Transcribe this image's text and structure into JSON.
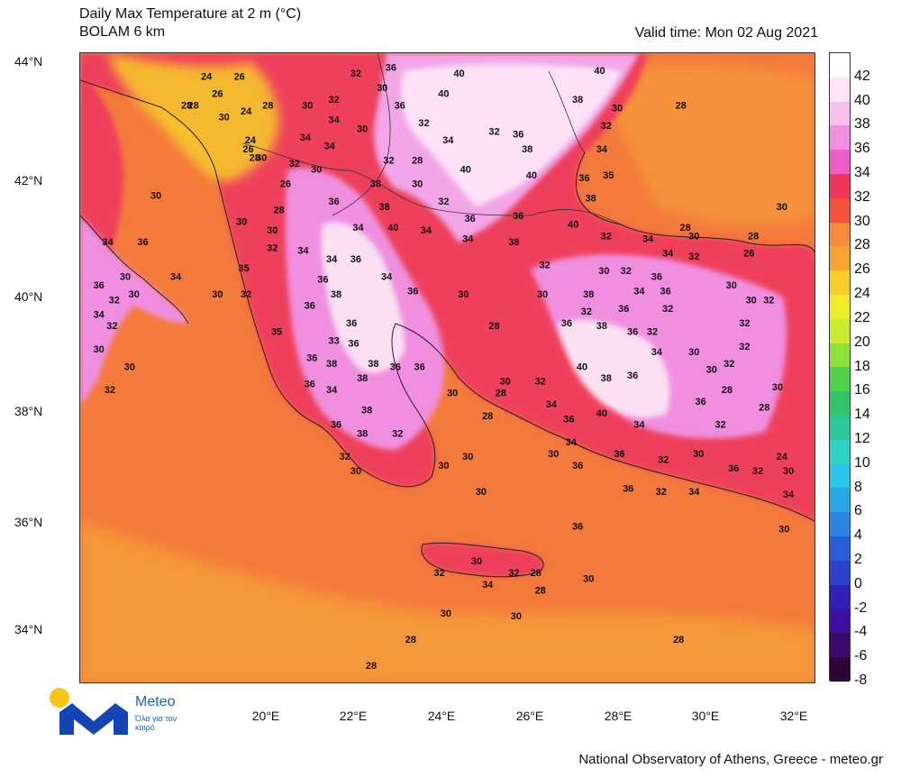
{
  "header": {
    "title": "Daily Max Temperature at 2 m (°C)",
    "model": "BOLAM 6 km",
    "valid_time": "Valid time: Mon 02 Aug 2021"
  },
  "axes": {
    "latitudes": [
      "44°N",
      "42°N",
      "40°N",
      "38°N",
      "36°N",
      "34°N"
    ],
    "longitudes": [
      "20°E",
      "22°E",
      "24°E",
      "26°E",
      "28°E",
      "30°E",
      "32°E"
    ]
  },
  "colorbar": {
    "labels": [
      "42",
      "40",
      "38",
      "36",
      "34",
      "32",
      "30",
      "28",
      "26",
      "24",
      "22",
      "20",
      "18",
      "16",
      "14",
      "12",
      "10",
      "8",
      "6",
      "4",
      "2",
      "0",
      "-2",
      "-4",
      "-6",
      "-8"
    ],
    "colors": [
      "#ffffff",
      "#fbe6f5",
      "#f8c0ea",
      "#f08fe0",
      "#ee5ec9",
      "#f0365a",
      "#f4523a",
      "#f58a3a",
      "#f6a431",
      "#f7cd2a",
      "#f1ec2b",
      "#c9ec30",
      "#8ee13a",
      "#52d14a",
      "#33c36a",
      "#2ec59a",
      "#2dd2c7",
      "#29c6e7",
      "#28a8e6",
      "#2a84e0",
      "#2a5ed6",
      "#2c41c9",
      "#3022b6",
      "#3b11a2",
      "#3a0d6d",
      "#2a0637"
    ]
  },
  "map_values": [
    {
      "v": "24",
      "lon": 18.65,
      "lat": 43.7
    },
    {
      "v": "26",
      "lon": 19.4,
      "lat": 43.7
    },
    {
      "v": "26",
      "lon": 18.9,
      "lat": 43.4
    },
    {
      "v": "28",
      "lon": 18.35,
      "lat": 43.2
    },
    {
      "v": "28",
      "lon": 18.2,
      "lat": 43.2
    },
    {
      "v": "30",
      "lon": 19.05,
      "lat": 43.0
    },
    {
      "v": "24",
      "lon": 19.55,
      "lat": 43.1
    },
    {
      "v": "28",
      "lon": 20.05,
      "lat": 43.2
    },
    {
      "v": "24",
      "lon": 19.65,
      "lat": 42.6
    },
    {
      "v": "32",
      "lon": 22.05,
      "lat": 43.75
    },
    {
      "v": "36",
      "lon": 22.85,
      "lat": 43.85
    },
    {
      "v": "40",
      "lon": 24.4,
      "lat": 43.75
    },
    {
      "v": "40",
      "lon": 27.6,
      "lat": 43.8
    },
    {
      "v": "40",
      "lon": 24.05,
      "lat": 43.4
    },
    {
      "v": "38",
      "lon": 27.1,
      "lat": 43.3
    },
    {
      "v": "30",
      "lon": 22.65,
      "lat": 43.5
    },
    {
      "v": "32",
      "lon": 21.55,
      "lat": 43.3
    },
    {
      "v": "30",
      "lon": 20.95,
      "lat": 43.2
    },
    {
      "v": "36",
      "lon": 23.05,
      "lat": 43.2
    },
    {
      "v": "30",
      "lon": 28.0,
      "lat": 43.15
    },
    {
      "v": "28",
      "lon": 29.45,
      "lat": 43.2
    },
    {
      "v": "34",
      "lon": 21.55,
      "lat": 42.95
    },
    {
      "v": "30",
      "lon": 22.2,
      "lat": 42.8
    },
    {
      "v": "32",
      "lon": 23.6,
      "lat": 42.9
    },
    {
      "v": "34",
      "lon": 24.15,
      "lat": 42.6
    },
    {
      "v": "32",
      "lon": 25.2,
      "lat": 42.75
    },
    {
      "v": "36",
      "lon": 25.75,
      "lat": 42.7
    },
    {
      "v": "32",
      "lon": 27.75,
      "lat": 42.85
    },
    {
      "v": "34",
      "lon": 20.9,
      "lat": 42.65
    },
    {
      "v": "34",
      "lon": 21.45,
      "lat": 42.5
    },
    {
      "v": "38",
      "lon": 25.95,
      "lat": 42.45
    },
    {
      "v": "34",
      "lon": 27.65,
      "lat": 42.45
    },
    {
      "v": "30",
      "lon": 19.9,
      "lat": 42.3
    },
    {
      "v": "28",
      "lon": 19.75,
      "lat": 42.3
    },
    {
      "v": "26",
      "lon": 19.6,
      "lat": 42.45
    },
    {
      "v": "32",
      "lon": 20.65,
      "lat": 42.2
    },
    {
      "v": "30",
      "lon": 21.15,
      "lat": 42.1
    },
    {
      "v": "32",
      "lon": 22.8,
      "lat": 42.25
    },
    {
      "v": "28",
      "lon": 23.45,
      "lat": 42.25
    },
    {
      "v": "40",
      "lon": 24.55,
      "lat": 42.1
    },
    {
      "v": "40",
      "lon": 26.05,
      "lat": 42.0
    },
    {
      "v": "36",
      "lon": 27.25,
      "lat": 41.95
    },
    {
      "v": "35",
      "lon": 27.8,
      "lat": 42.0
    },
    {
      "v": "26",
      "lon": 20.45,
      "lat": 41.85
    },
    {
      "v": "30",
      "lon": 23.45,
      "lat": 41.85
    },
    {
      "v": "38",
      "lon": 22.5,
      "lat": 41.85
    },
    {
      "v": "38",
      "lon": 27.4,
      "lat": 41.6
    },
    {
      "v": "30",
      "lon": 17.5,
      "lat": 41.65
    },
    {
      "v": "36",
      "lon": 21.55,
      "lat": 41.55
    },
    {
      "v": "38",
      "lon": 22.7,
      "lat": 41.45
    },
    {
      "v": "32",
      "lon": 24.05,
      "lat": 41.55
    },
    {
      "v": "28",
      "lon": 20.3,
      "lat": 41.4
    },
    {
      "v": "30",
      "lon": 19.45,
      "lat": 41.2
    },
    {
      "v": "36",
      "lon": 24.65,
      "lat": 41.25
    },
    {
      "v": "36",
      "lon": 25.75,
      "lat": 41.3
    },
    {
      "v": "40",
      "lon": 27.0,
      "lat": 41.15
    },
    {
      "v": "28",
      "lon": 29.55,
      "lat": 41.1
    },
    {
      "v": "30",
      "lon": 31.75,
      "lat": 41.45
    },
    {
      "v": "40",
      "lon": 22.9,
      "lat": 41.1
    },
    {
      "v": "34",
      "lon": 23.65,
      "lat": 41.05
    },
    {
      "v": "34",
      "lon": 22.1,
      "lat": 41.1
    },
    {
      "v": "30",
      "lon": 20.15,
      "lat": 41.05
    },
    {
      "v": "34",
      "lon": 24.6,
      "lat": 40.9
    },
    {
      "v": "38",
      "lon": 25.65,
      "lat": 40.85
    },
    {
      "v": "32",
      "lon": 27.75,
      "lat": 40.95
    },
    {
      "v": "34",
      "lon": 28.7,
      "lat": 40.9
    },
    {
      "v": "30",
      "lon": 29.75,
      "lat": 40.95
    },
    {
      "v": "28",
      "lon": 31.1,
      "lat": 40.95
    },
    {
      "v": "34",
      "lon": 16.4,
      "lat": 40.85
    },
    {
      "v": "36",
      "lon": 17.2,
      "lat": 40.85
    },
    {
      "v": "32",
      "lon": 20.15,
      "lat": 40.75
    },
    {
      "v": "34",
      "lon": 20.85,
      "lat": 40.7
    },
    {
      "v": "34",
      "lon": 21.5,
      "lat": 40.55
    },
    {
      "v": "36",
      "lon": 22.05,
      "lat": 40.55
    },
    {
      "v": "36",
      "lon": 21.3,
      "lat": 40.2
    },
    {
      "v": "32",
      "lon": 26.35,
      "lat": 40.45
    },
    {
      "v": "34",
      "lon": 29.15,
      "lat": 40.65
    },
    {
      "v": "32",
      "lon": 29.75,
      "lat": 40.6
    },
    {
      "v": "26",
      "lon": 31.0,
      "lat": 40.65
    },
    {
      "v": "35",
      "lon": 19.5,
      "lat": 40.4
    },
    {
      "v": "34",
      "lon": 22.75,
      "lat": 40.25
    },
    {
      "v": "30",
      "lon": 27.7,
      "lat": 40.35
    },
    {
      "v": "32",
      "lon": 28.2,
      "lat": 40.35
    },
    {
      "v": "36",
      "lon": 28.9,
      "lat": 40.25
    },
    {
      "v": "30",
      "lon": 16.8,
      "lat": 40.25
    },
    {
      "v": "34",
      "lon": 17.95,
      "lat": 40.25
    },
    {
      "v": "36",
      "lon": 16.2,
      "lat": 40.1
    },
    {
      "v": "38",
      "lon": 21.6,
      "lat": 39.95
    },
    {
      "v": "36",
      "lon": 23.35,
      "lat": 40.0
    },
    {
      "v": "30",
      "lon": 24.5,
      "lat": 39.95
    },
    {
      "v": "30",
      "lon": 26.3,
      "lat": 39.95
    },
    {
      "v": "38",
      "lon": 27.35,
      "lat": 39.95
    },
    {
      "v": "34",
      "lon": 28.5,
      "lat": 40.0
    },
    {
      "v": "36",
      "lon": 29.1,
      "lat": 40.0
    },
    {
      "v": "30",
      "lon": 30.6,
      "lat": 40.1
    },
    {
      "v": "30",
      "lon": 17.0,
      "lat": 39.95
    },
    {
      "v": "32",
      "lon": 16.55,
      "lat": 39.85
    },
    {
      "v": "30",
      "lon": 18.9,
      "lat": 39.95
    },
    {
      "v": "32",
      "lon": 19.55,
      "lat": 39.95
    },
    {
      "v": "36",
      "lon": 21.0,
      "lat": 39.75
    },
    {
      "v": "32",
      "lon": 27.3,
      "lat": 39.65
    },
    {
      "v": "36",
      "lon": 28.15,
      "lat": 39.7
    },
    {
      "v": "32",
      "lon": 29.15,
      "lat": 39.7
    },
    {
      "v": "30",
      "lon": 31.05,
      "lat": 39.85
    },
    {
      "v": "32",
      "lon": 31.45,
      "lat": 39.85
    },
    {
      "v": "34",
      "lon": 16.2,
      "lat": 39.6
    },
    {
      "v": "32",
      "lon": 16.5,
      "lat": 39.4
    },
    {
      "v": "36",
      "lon": 21.95,
      "lat": 39.45
    },
    {
      "v": "28",
      "lon": 25.2,
      "lat": 39.4
    },
    {
      "v": "36",
      "lon": 26.85,
      "lat": 39.45
    },
    {
      "v": "38",
      "lon": 27.65,
      "lat": 39.4
    },
    {
      "v": "36",
      "lon": 28.35,
      "lat": 39.3
    },
    {
      "v": "32",
      "lon": 28.8,
      "lat": 39.3
    },
    {
      "v": "32",
      "lon": 30.9,
      "lat": 39.45
    },
    {
      "v": "35",
      "lon": 20.25,
      "lat": 39.3
    },
    {
      "v": "33",
      "lon": 21.55,
      "lat": 39.15
    },
    {
      "v": "36",
      "lon": 22.0,
      "lat": 39.1
    },
    {
      "v": "30",
      "lon": 16.2,
      "lat": 39.0
    },
    {
      "v": "34",
      "lon": 28.9,
      "lat": 38.95
    },
    {
      "v": "30",
      "lon": 29.75,
      "lat": 38.95
    },
    {
      "v": "32",
      "lon": 30.9,
      "lat": 39.05
    },
    {
      "v": "36",
      "lon": 21.05,
      "lat": 38.85
    },
    {
      "v": "38",
      "lon": 22.45,
      "lat": 38.75
    },
    {
      "v": "30",
      "lon": 16.9,
      "lat": 38.7
    },
    {
      "v": "36",
      "lon": 22.95,
      "lat": 38.7
    },
    {
      "v": "36",
      "lon": 23.5,
      "lat": 38.7
    },
    {
      "v": "40",
      "lon": 27.2,
      "lat": 38.7
    },
    {
      "v": "38",
      "lon": 27.75,
      "lat": 38.5
    },
    {
      "v": "36",
      "lon": 28.35,
      "lat": 38.55
    },
    {
      "v": "30",
      "lon": 30.15,
      "lat": 38.65
    },
    {
      "v": "32",
      "lon": 30.55,
      "lat": 38.75
    },
    {
      "v": "38",
      "lon": 21.5,
      "lat": 38.75
    },
    {
      "v": "38",
      "lon": 22.2,
      "lat": 38.5
    },
    {
      "v": "36",
      "lon": 21.0,
      "lat": 38.4
    },
    {
      "v": "34",
      "lon": 21.5,
      "lat": 38.3
    },
    {
      "v": "32",
      "lon": 16.45,
      "lat": 38.3
    },
    {
      "v": "30",
      "lon": 25.45,
      "lat": 38.45
    },
    {
      "v": "32",
      "lon": 26.25,
      "lat": 38.45
    },
    {
      "v": "28",
      "lon": 25.35,
      "lat": 38.25
    },
    {
      "v": "30",
      "lon": 24.25,
      "lat": 38.25
    },
    {
      "v": "28",
      "lon": 30.5,
      "lat": 38.3
    },
    {
      "v": "30",
      "lon": 31.65,
      "lat": 38.35
    },
    {
      "v": "36",
      "lon": 29.9,
      "lat": 38.1
    },
    {
      "v": "28",
      "lon": 31.35,
      "lat": 38.0
    },
    {
      "v": "38",
      "lon": 22.3,
      "lat": 37.95
    },
    {
      "v": "40",
      "lon": 27.65,
      "lat": 37.9
    },
    {
      "v": "36",
      "lon": 26.9,
      "lat": 37.8
    },
    {
      "v": "34",
      "lon": 26.5,
      "lat": 38.05
    },
    {
      "v": "28",
      "lon": 25.05,
      "lat": 37.85
    },
    {
      "v": "36",
      "lon": 21.6,
      "lat": 37.7
    },
    {
      "v": "38",
      "lon": 22.2,
      "lat": 37.55
    },
    {
      "v": "32",
      "lon": 23.0,
      "lat": 37.55
    },
    {
      "v": "32",
      "lon": 30.35,
      "lat": 37.7
    },
    {
      "v": "34",
      "lon": 28.5,
      "lat": 37.7
    },
    {
      "v": "34",
      "lon": 26.95,
      "lat": 37.4
    },
    {
      "v": "30",
      "lon": 26.55,
      "lat": 37.2
    },
    {
      "v": "36",
      "lon": 27.1,
      "lat": 37.0
    },
    {
      "v": "32",
      "lon": 29.05,
      "lat": 37.1
    },
    {
      "v": "30",
      "lon": 29.85,
      "lat": 37.2
    },
    {
      "v": "24",
      "lon": 31.75,
      "lat": 37.15
    },
    {
      "v": "32",
      "lon": 21.8,
      "lat": 37.15
    },
    {
      "v": "30",
      "lon": 22.05,
      "lat": 36.9
    },
    {
      "v": "30",
      "lon": 24.05,
      "lat": 37.0
    },
    {
      "v": "30",
      "lon": 24.6,
      "lat": 37.15
    },
    {
      "v": "36",
      "lon": 28.05,
      "lat": 37.2
    },
    {
      "v": "36",
      "lon": 30.65,
      "lat": 36.95
    },
    {
      "v": "32",
      "lon": 31.2,
      "lat": 36.9
    },
    {
      "v": "30",
      "lon": 31.9,
      "lat": 36.9
    },
    {
      "v": "36",
      "lon": 28.25,
      "lat": 36.6
    },
    {
      "v": "34",
      "lon": 29.75,
      "lat": 36.55
    },
    {
      "v": "32",
      "lon": 29.0,
      "lat": 36.55
    },
    {
      "v": "34",
      "lon": 31.9,
      "lat": 36.5
    },
    {
      "v": "30",
      "lon": 24.9,
      "lat": 36.55
    },
    {
      "v": "30",
      "lon": 31.8,
      "lat": 35.9
    },
    {
      "v": "36",
      "lon": 27.1,
      "lat": 35.95
    },
    {
      "v": "30",
      "lon": 24.8,
      "lat": 35.35
    },
    {
      "v": "32",
      "lon": 23.95,
      "lat": 35.15
    },
    {
      "v": "32",
      "lon": 25.65,
      "lat": 35.15
    },
    {
      "v": "28",
      "lon": 26.15,
      "lat": 35.15
    },
    {
      "v": "34",
      "lon": 25.05,
      "lat": 34.95
    },
    {
      "v": "30",
      "lon": 27.35,
      "lat": 35.05
    },
    {
      "v": "28",
      "lon": 26.25,
      "lat": 34.85
    },
    {
      "v": "30",
      "lon": 24.1,
      "lat": 34.45
    },
    {
      "v": "30",
      "lon": 25.7,
      "lat": 34.4
    },
    {
      "v": "28",
      "lon": 23.3,
      "lat": 34.0
    },
    {
      "v": "28",
      "lon": 29.4,
      "lat": 34.0
    },
    {
      "v": "28",
      "lon": 22.4,
      "lat": 33.55
    }
  ],
  "logo": {
    "brand": "Meteo",
    "tagline": "Όλα για τον καιρό"
  },
  "footer": {
    "credit": "National Observatory of Athens, Greece - meteo.gr"
  }
}
